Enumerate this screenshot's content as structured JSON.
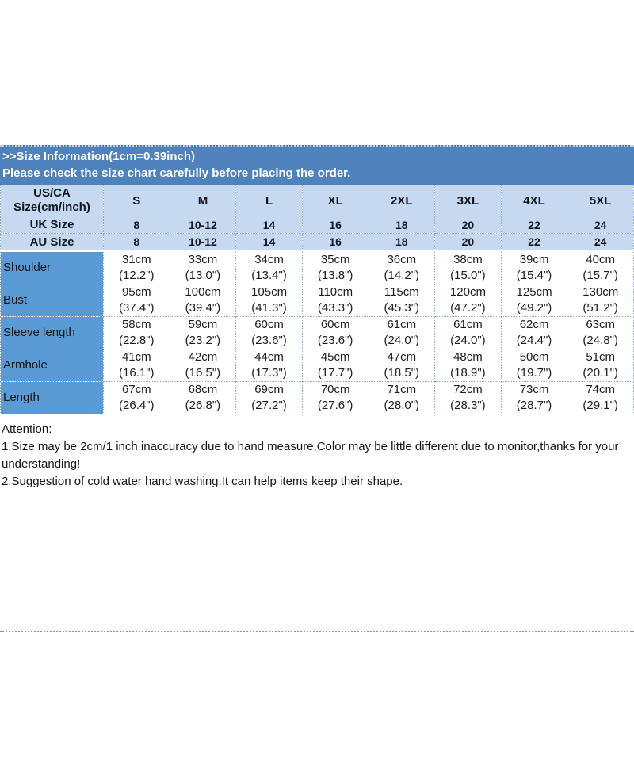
{
  "banner": {
    "line1": ">>Size Information(1cm=0.39inch)",
    "line2": "Please check the size chart carefully before placing the order."
  },
  "colors": {
    "banner_bg": "#4f81bd",
    "header_row_bg": "#c6d9f1",
    "label_cell_bg": "#5b9bd5",
    "banner_text": "#ffffff",
    "table_text": "#1c1c1c"
  },
  "table": {
    "corner": {
      "line1": "US/CA",
      "line2": "Size(cm/inch)"
    },
    "sizes": [
      "S",
      "M",
      "L",
      "XL",
      "2XL",
      "3XL",
      "4XL",
      "5XL"
    ],
    "uk": {
      "label": "UK Size",
      "values": [
        "8",
        "10-12",
        "14",
        "16",
        "18",
        "20",
        "22",
        "24"
      ]
    },
    "au": {
      "label": "AU Size",
      "values": [
        "8",
        "10-12",
        "14",
        "16",
        "18",
        "20",
        "22",
        "24"
      ]
    },
    "measurements": [
      {
        "label": "Shoulder",
        "cm": [
          "31cm",
          "33cm",
          "34cm",
          "35cm",
          "36cm",
          "38cm",
          "39cm",
          "40cm"
        ],
        "inch": [
          "(12.2\")",
          "(13.0\")",
          "(13.4\")",
          "(13.8\")",
          "(14.2\")",
          "(15.0\")",
          "(15.4\")",
          "(15.7\")"
        ]
      },
      {
        "label": "Bust",
        "cm": [
          "95cm",
          "100cm",
          "105cm",
          "110cm",
          "115cm",
          "120cm",
          "125cm",
          "130cm"
        ],
        "inch": [
          "(37.4\")",
          "(39.4\")",
          "(41.3\")",
          "(43.3\")",
          "(45.3\")",
          "(47.2\")",
          "(49.2\")",
          "(51.2\")"
        ]
      },
      {
        "label": "Sleeve length",
        "cm": [
          "58cm",
          "59cm",
          "60cm",
          "60cm",
          "61cm",
          "61cm",
          "62cm",
          "63cm"
        ],
        "inch": [
          "(22.8\")",
          "(23.2\")",
          "(23.6\")",
          "(23.6\")",
          "(24.0\")",
          "(24.0\")",
          "(24.4\")",
          "(24.8\")"
        ]
      },
      {
        "label": "Armhole",
        "cm": [
          "41cm",
          "42cm",
          "44cm",
          "45cm",
          "47cm",
          "48cm",
          "50cm",
          "51cm"
        ],
        "inch": [
          "(16.1\")",
          "(16.5\")",
          "(17.3\")",
          "(17.7\")",
          "(18.5\")",
          "(18.9\")",
          "(19.7\")",
          "(20.1\")"
        ]
      },
      {
        "label": "Length",
        "cm": [
          "67cm",
          "68cm",
          "69cm",
          "70cm",
          "71cm",
          "72cm",
          "73cm",
          "74cm"
        ],
        "inch": [
          "(26.4\")",
          "(26.8\")",
          "(27.2\")",
          "(27.6\")",
          "(28.0\")",
          "(28.3\")",
          "(28.7\")",
          "(29.1\")"
        ]
      }
    ]
  },
  "attention": {
    "title": "Attention:",
    "note1": "1.Size may be 2cm/1 inch inaccuracy due to hand measure,Color may be little different due to monitor,thanks for your understanding!",
    "note2": "2.Suggestion of cold water hand washing.It can help items keep their shape."
  }
}
